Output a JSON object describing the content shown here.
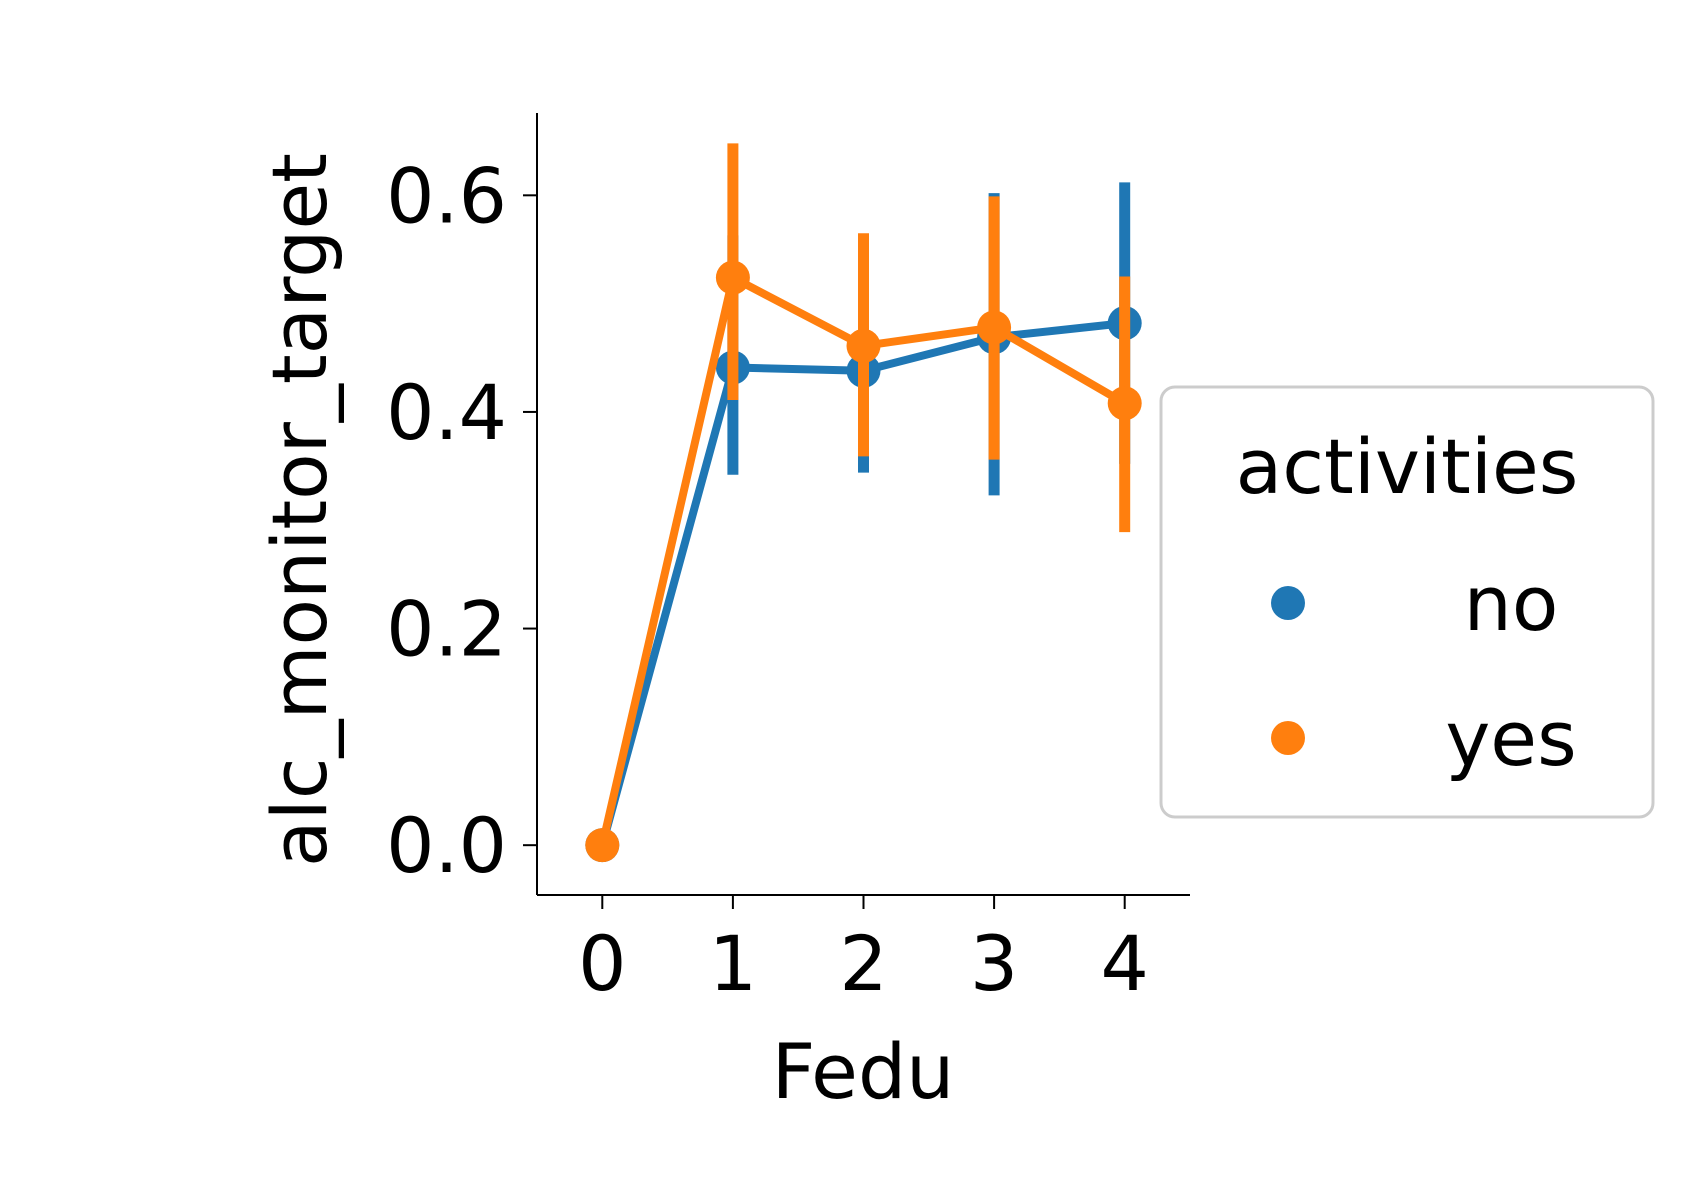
{
  "chart_data": {
    "type": "line",
    "xlabel": "Fedu",
    "ylabel": "alc_monitor_target",
    "categories": [
      "0",
      "1",
      "2",
      "3",
      "4"
    ],
    "x": [
      0,
      1,
      2,
      3,
      4
    ],
    "ylim": [
      -0.046,
      0.676
    ],
    "yticks": [
      0.0,
      0.2,
      0.4,
      0.6
    ],
    "ytick_labels": [
      "0.0",
      "0.2",
      "0.4",
      "0.6"
    ],
    "grid": false,
    "legend": {
      "title": "activities",
      "placement": "center-right"
    },
    "series": [
      {
        "name": "no",
        "color": "#1f77b4",
        "values": [
          0.0,
          0.441,
          0.438,
          0.469,
          0.482
        ],
        "ci_low": [
          0.0,
          0.342,
          0.344,
          0.323,
          0.352
        ],
        "ci_high": [
          0.0,
          0.563,
          0.53,
          0.602,
          0.612
        ]
      },
      {
        "name": "yes",
        "color": "#ff7f0e",
        "values": [
          0.0,
          0.524,
          0.461,
          0.478,
          0.408
        ],
        "ci_low": [
          0.0,
          0.411,
          0.359,
          0.356,
          0.289
        ],
        "ci_high": [
          0.0,
          0.648,
          0.565,
          0.599,
          0.525
        ]
      }
    ]
  }
}
